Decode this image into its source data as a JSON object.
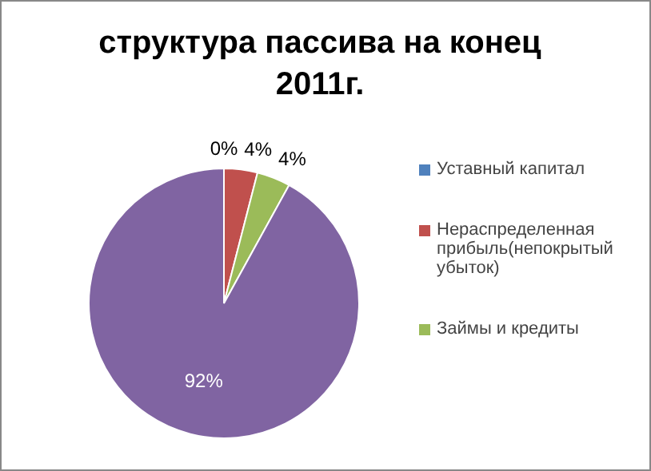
{
  "chart_data": {
    "type": "pie",
    "title": "структура пассива на конец 2011г.",
    "categories": [
      "Уставный капитал",
      "Нераспределенная прибыль(непокрытый убыток)",
      "Займы и кредиты",
      null
    ],
    "values": [
      0,
      4,
      4,
      92
    ],
    "colors": [
      "#4f81bd",
      "#c0504d",
      "#9bbb59",
      "#8064a2"
    ],
    "value_labels": [
      "0%",
      "4%",
      "4%",
      "92%"
    ],
    "legend": "right"
  }
}
